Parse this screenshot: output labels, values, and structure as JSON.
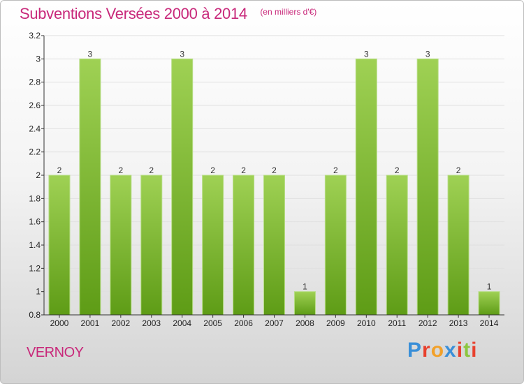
{
  "header": {
    "title": "Subventions Versées 2000 à 2014",
    "subtitle": "(en milliers d'€)"
  },
  "footer": {
    "town": "VERNOY",
    "brand": "Proxiti"
  },
  "colors": {
    "title": "#c8287a",
    "bar_top": "#9fd154",
    "bar_bottom": "#5e9c16",
    "grid": "#e0e0e0",
    "axis": "#333333",
    "brand_letters": [
      "#3a8fd8",
      "#e8402d",
      "#f2a12a",
      "#3a8fd8",
      "#e8402d",
      "#8cc63f",
      "#e8402d"
    ]
  },
  "chart_data": {
    "type": "bar",
    "title": "Subventions Versées 2000 à 2014",
    "subtitle": "(en milliers d'€)",
    "categories": [
      "2000",
      "2001",
      "2002",
      "2003",
      "2004",
      "2005",
      "2006",
      "2007",
      "2008",
      "2009",
      "2010",
      "2011",
      "2012",
      "2013",
      "2014"
    ],
    "values": [
      2,
      3,
      2,
      2,
      3,
      2,
      2,
      2,
      1,
      2,
      3,
      2,
      3,
      2,
      1
    ],
    "data_labels": [
      "2",
      "3",
      "2",
      "2",
      "3",
      "2",
      "2",
      "2",
      "1",
      "2",
      "3",
      "2",
      "3",
      "2",
      "1"
    ],
    "yticks": [
      0.8,
      1,
      1.2,
      1.4,
      1.6,
      1.8,
      2,
      2.2,
      2.4,
      2.6,
      2.8,
      3,
      3.2
    ],
    "ytick_labels": [
      "0.8",
      "1",
      "1.2",
      "1.4",
      "1.6",
      "1.8",
      "2",
      "2.2",
      "2.4",
      "2.6",
      "2.8",
      "3",
      "3.2"
    ],
    "ylim": [
      0.8,
      3.2
    ],
    "xlabel": "",
    "ylabel": "",
    "grid": true,
    "legend": "none"
  }
}
